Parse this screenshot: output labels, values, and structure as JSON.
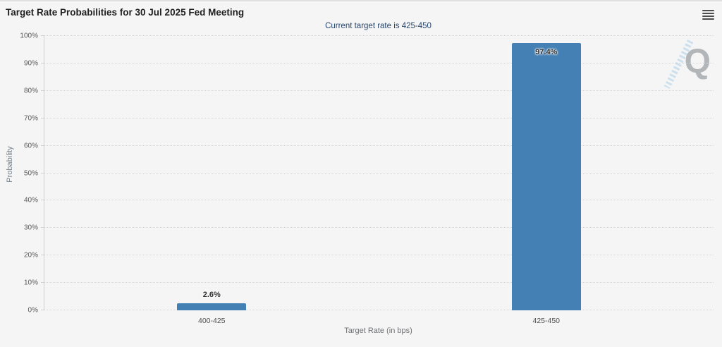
{
  "header": {
    "title": "Target Rate Probabilities for 30 Jul 2025 Fed Meeting",
    "menu_icon": "hamburger-context-menu-icon"
  },
  "chart_data": {
    "type": "bar",
    "title": "Target Rate Probabilities for 30 Jul 2025 Fed Meeting",
    "subtitle": "Current target rate is 425-450",
    "categories": [
      "400-425",
      "425-450"
    ],
    "values": [
      2.6,
      97.4
    ],
    "value_labels": [
      "2.6%",
      "97.4%"
    ],
    "xlabel": "Target Rate (in bps)",
    "ylabel": "Probability",
    "ylim": [
      0,
      100
    ],
    "ytick_step": 10,
    "ytick_suffix": "%",
    "grid": "dotted-horizontal",
    "legend": "none",
    "bar_color": "#4480b4"
  },
  "watermark": {
    "letter": "Q",
    "letter_color": "#b3b6b9",
    "stripe_color": "#c7ddec"
  },
  "colors": {
    "background": "#f5f5f6",
    "title_text": "#212121",
    "subtitle_text": "#26456b",
    "axis_label": "#595959",
    "axis_title": "#76818b",
    "gridline": "#d7d7d8",
    "bar": "#4480b4"
  }
}
